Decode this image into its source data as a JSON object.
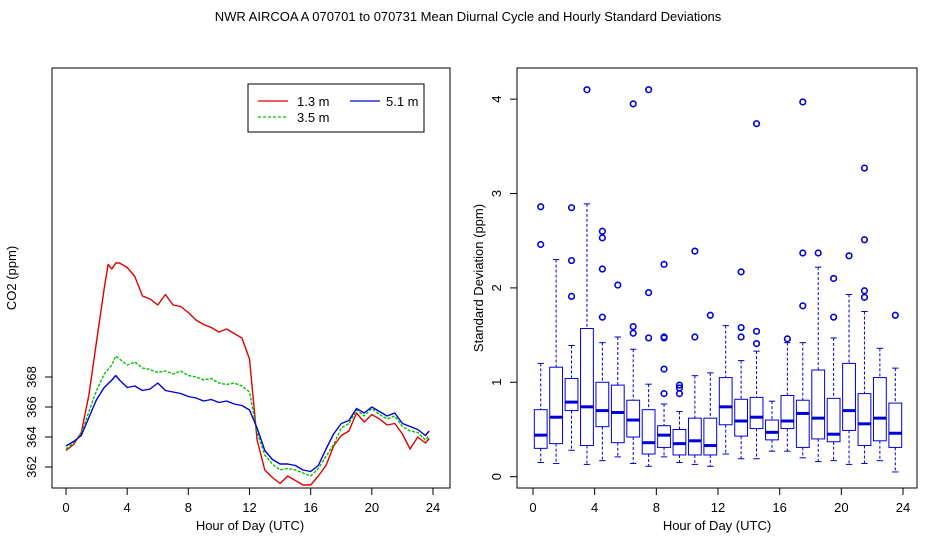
{
  "title": "NWR   AIRCOA A   070701 to 070731   Mean Diurnal Cycle and Hourly Standard Deviations",
  "colors": {
    "red": "#e00000",
    "green": "#00c000",
    "blue": "#0000d8"
  },
  "chart_data": [
    {
      "type": "line",
      "xlabel": "Hour of Day (UTC)",
      "ylabel": "CO2 (ppm)",
      "xlim": [
        0,
        24
      ],
      "ylim": [
        360.6,
        388.6
      ],
      "xticks": [
        0,
        4,
        8,
        12,
        16,
        20,
        24
      ],
      "yticks": [
        362,
        364,
        366,
        368
      ],
      "grid": false,
      "legend_position": "top-right",
      "series": [
        {
          "name": "1.3 m",
          "color": "#e00000",
          "style": "solid",
          "x": [
            0,
            0.5,
            1,
            1.5,
            2,
            2.5,
            2.75,
            3,
            3.25,
            3.5,
            4,
            4.5,
            5,
            5.5,
            6,
            6.5,
            7,
            7.5,
            8,
            8.5,
            9,
            9.5,
            10,
            10.5,
            11,
            11.5,
            12,
            12.5,
            13,
            13.5,
            14,
            14.5,
            15,
            15.5,
            16,
            16.5,
            17,
            17.5,
            18,
            18.5,
            19,
            19.5,
            20,
            20.5,
            21,
            21.5,
            22,
            22.5,
            23,
            23.5,
            23.75
          ],
          "y": [
            363.1,
            363.5,
            364.3,
            366.8,
            370.4,
            373.9,
            375.5,
            375.2,
            375.6,
            375.6,
            375.3,
            374.7,
            373.4,
            373.2,
            372.8,
            373.5,
            372.8,
            372.7,
            372.3,
            371.8,
            371.5,
            371.3,
            371.0,
            371.2,
            370.9,
            370.6,
            369.2,
            363.8,
            361.8,
            361.3,
            360.9,
            361.4,
            361.1,
            360.8,
            360.8,
            361.4,
            362.1,
            363.4,
            364.1,
            364.4,
            365.6,
            365.0,
            365.5,
            365.2,
            364.8,
            364.9,
            364.2,
            363.2,
            364.0,
            363.6,
            363.9
          ]
        },
        {
          "name": "3.5 m",
          "color": "#00c000",
          "style": "dashed",
          "x": [
            0,
            0.5,
            1,
            1.5,
            2,
            2.5,
            3,
            3.25,
            3.5,
            4,
            4.5,
            5,
            5.5,
            6,
            6.5,
            7,
            7.5,
            8,
            8.5,
            9,
            9.5,
            10,
            10.5,
            11,
            11.5,
            12,
            12.5,
            13,
            13.5,
            14,
            14.5,
            15,
            15.5,
            16,
            16.5,
            17,
            17.5,
            18,
            18.5,
            19,
            19.5,
            20,
            20.5,
            21,
            21.5,
            22,
            22.5,
            23,
            23.5,
            23.75
          ],
          "y": [
            363.2,
            363.6,
            364.2,
            365.7,
            367.1,
            368.2,
            368.8,
            369.4,
            369.2,
            368.8,
            369.0,
            368.6,
            368.5,
            368.3,
            368.4,
            368.2,
            368.4,
            368.1,
            368.0,
            367.8,
            367.9,
            367.6,
            367.5,
            367.6,
            367.4,
            367.0,
            364.3,
            362.8,
            362.2,
            361.8,
            361.9,
            361.8,
            361.6,
            361.4,
            361.9,
            362.7,
            363.5,
            364.6,
            364.9,
            365.8,
            365.4,
            365.9,
            365.5,
            365.2,
            365.4,
            364.7,
            364.4,
            364.3,
            363.8,
            364.1
          ]
        },
        {
          "name": "5.1 m",
          "color": "#0000d8",
          "style": "solid",
          "x": [
            0,
            0.5,
            1,
            1.5,
            2,
            2.5,
            3,
            3.25,
            3.5,
            4,
            4.5,
            5,
            5.5,
            6,
            6.5,
            7,
            7.5,
            8,
            8.5,
            9,
            9.5,
            10,
            10.5,
            11,
            11.5,
            12,
            12.5,
            13,
            13.5,
            14,
            14.5,
            15,
            15.5,
            16,
            16.5,
            17,
            17.5,
            18,
            18.5,
            19,
            19.5,
            20,
            20.5,
            21,
            21.5,
            22,
            22.5,
            23,
            23.5,
            23.75
          ],
          "y": [
            363.4,
            363.7,
            364.1,
            365.3,
            366.5,
            367.3,
            367.8,
            368.1,
            367.8,
            367.3,
            367.4,
            367.1,
            367.2,
            367.6,
            367.1,
            367.0,
            366.9,
            366.7,
            366.6,
            366.4,
            366.5,
            366.3,
            366.4,
            366.2,
            366.1,
            365.8,
            364.6,
            363.1,
            362.5,
            362.2,
            362.2,
            362.1,
            361.8,
            361.7,
            362.1,
            363.2,
            364.2,
            364.9,
            365.1,
            365.9,
            365.6,
            366.0,
            365.7,
            365.4,
            365.6,
            364.9,
            364.7,
            364.5,
            364.1,
            364.4
          ]
        }
      ]
    },
    {
      "type": "box",
      "xlabel": "Hour of Day (UTC)",
      "ylabel": "Standard Deviation (ppm)",
      "xlim": [
        0,
        24
      ],
      "ylim": [
        -0.12,
        4.33
      ],
      "xticks": [
        0,
        4,
        8,
        12,
        16,
        20,
        24
      ],
      "yticks": [
        0,
        1,
        2,
        3,
        4
      ],
      "grid": false,
      "boxes": [
        {
          "hour": 0.5,
          "wlo": 0.15,
          "q1": 0.3,
          "med": 0.44,
          "q3": 0.71,
          "whi": 1.2,
          "outliers": [
            2.46,
            2.86
          ]
        },
        {
          "hour": 1.5,
          "wlo": 0.14,
          "q1": 0.35,
          "med": 0.63,
          "q3": 1.16,
          "whi": 2.3,
          "outliers": []
        },
        {
          "hour": 2.5,
          "wlo": 0.28,
          "q1": 0.7,
          "med": 0.79,
          "q3": 1.04,
          "whi": 1.39,
          "outliers": [
            1.91,
            2.29,
            2.85
          ]
        },
        {
          "hour": 3.5,
          "wlo": 0.13,
          "q1": 0.33,
          "med": 0.74,
          "q3": 1.57,
          "whi": 2.89,
          "outliers": [
            4.1
          ]
        },
        {
          "hour": 4.5,
          "wlo": 0.17,
          "q1": 0.53,
          "med": 0.7,
          "q3": 1.0,
          "whi": 1.42,
          "outliers": [
            1.69,
            2.2,
            2.53,
            2.6
          ]
        },
        {
          "hour": 5.5,
          "wlo": 0.21,
          "q1": 0.36,
          "med": 0.68,
          "q3": 0.97,
          "whi": 1.48,
          "outliers": [
            2.03
          ]
        },
        {
          "hour": 6.5,
          "wlo": 0.14,
          "q1": 0.42,
          "med": 0.6,
          "q3": 0.81,
          "whi": 1.35,
          "outliers": [
            1.52,
            1.59,
            3.95
          ]
        },
        {
          "hour": 7.5,
          "wlo": 0.11,
          "q1": 0.24,
          "med": 0.36,
          "q3": 0.71,
          "whi": 0.98,
          "outliers": [
            1.47,
            1.95,
            4.1
          ]
        },
        {
          "hour": 8.5,
          "wlo": 0.21,
          "q1": 0.31,
          "med": 0.44,
          "q3": 0.54,
          "whi": 0.77,
          "outliers": [
            0.88,
            1.14,
            1.47,
            1.48,
            2.25
          ]
        },
        {
          "hour": 9.5,
          "wlo": 0.15,
          "q1": 0.23,
          "med": 0.35,
          "q3": 0.5,
          "whi": 0.69,
          "outliers": [
            0.88,
            0.94,
            0.97
          ]
        },
        {
          "hour": 10.5,
          "wlo": 0.13,
          "q1": 0.23,
          "med": 0.38,
          "q3": 0.62,
          "whi": 1.07,
          "outliers": [
            1.48,
            2.39
          ]
        },
        {
          "hour": 11.5,
          "wlo": 0.11,
          "q1": 0.23,
          "med": 0.33,
          "q3": 0.62,
          "whi": 1.1,
          "outliers": [
            1.71
          ]
        },
        {
          "hour": 12.5,
          "wlo": 0.24,
          "q1": 0.55,
          "med": 0.74,
          "q3": 1.05,
          "whi": 1.6,
          "outliers": []
        },
        {
          "hour": 13.5,
          "wlo": 0.19,
          "q1": 0.43,
          "med": 0.59,
          "q3": 0.82,
          "whi": 1.23,
          "outliers": [
            1.48,
            1.58,
            2.17
          ]
        },
        {
          "hour": 14.5,
          "wlo": 0.19,
          "q1": 0.51,
          "med": 0.63,
          "q3": 0.84,
          "whi": 1.33,
          "outliers": [
            1.41,
            1.54,
            3.74
          ]
        },
        {
          "hour": 15.5,
          "wlo": 0.27,
          "q1": 0.39,
          "med": 0.47,
          "q3": 0.6,
          "whi": 0.8,
          "outliers": []
        },
        {
          "hour": 16.5,
          "wlo": 0.27,
          "q1": 0.51,
          "med": 0.59,
          "q3": 0.86,
          "whi": 1.42,
          "outliers": [
            1.46
          ]
        },
        {
          "hour": 17.5,
          "wlo": 0.2,
          "q1": 0.31,
          "med": 0.67,
          "q3": 0.81,
          "whi": 1.42,
          "outliers": [
            1.81,
            2.37,
            3.97
          ]
        },
        {
          "hour": 18.5,
          "wlo": 0.16,
          "q1": 0.4,
          "med": 0.62,
          "q3": 1.13,
          "whi": 2.22,
          "outliers": [
            2.37
          ]
        },
        {
          "hour": 19.5,
          "wlo": 0.17,
          "q1": 0.37,
          "med": 0.45,
          "q3": 0.83,
          "whi": 1.47,
          "outliers": [
            1.69,
            2.1
          ]
        },
        {
          "hour": 20.5,
          "wlo": 0.13,
          "q1": 0.49,
          "med": 0.7,
          "q3": 1.2,
          "whi": 1.93,
          "outliers": [
            2.34
          ]
        },
        {
          "hour": 21.5,
          "wlo": 0.14,
          "q1": 0.33,
          "med": 0.56,
          "q3": 0.88,
          "whi": 1.75,
          "outliers": [
            1.9,
            1.97,
            2.51,
            3.27
          ]
        },
        {
          "hour": 22.5,
          "wlo": 0.17,
          "q1": 0.38,
          "med": 0.62,
          "q3": 1.05,
          "whi": 1.36,
          "outliers": []
        },
        {
          "hour": 23.5,
          "wlo": 0.05,
          "q1": 0.31,
          "med": 0.46,
          "q3": 0.78,
          "whi": 1.15,
          "outliers": [
            1.71
          ]
        }
      ]
    }
  ]
}
